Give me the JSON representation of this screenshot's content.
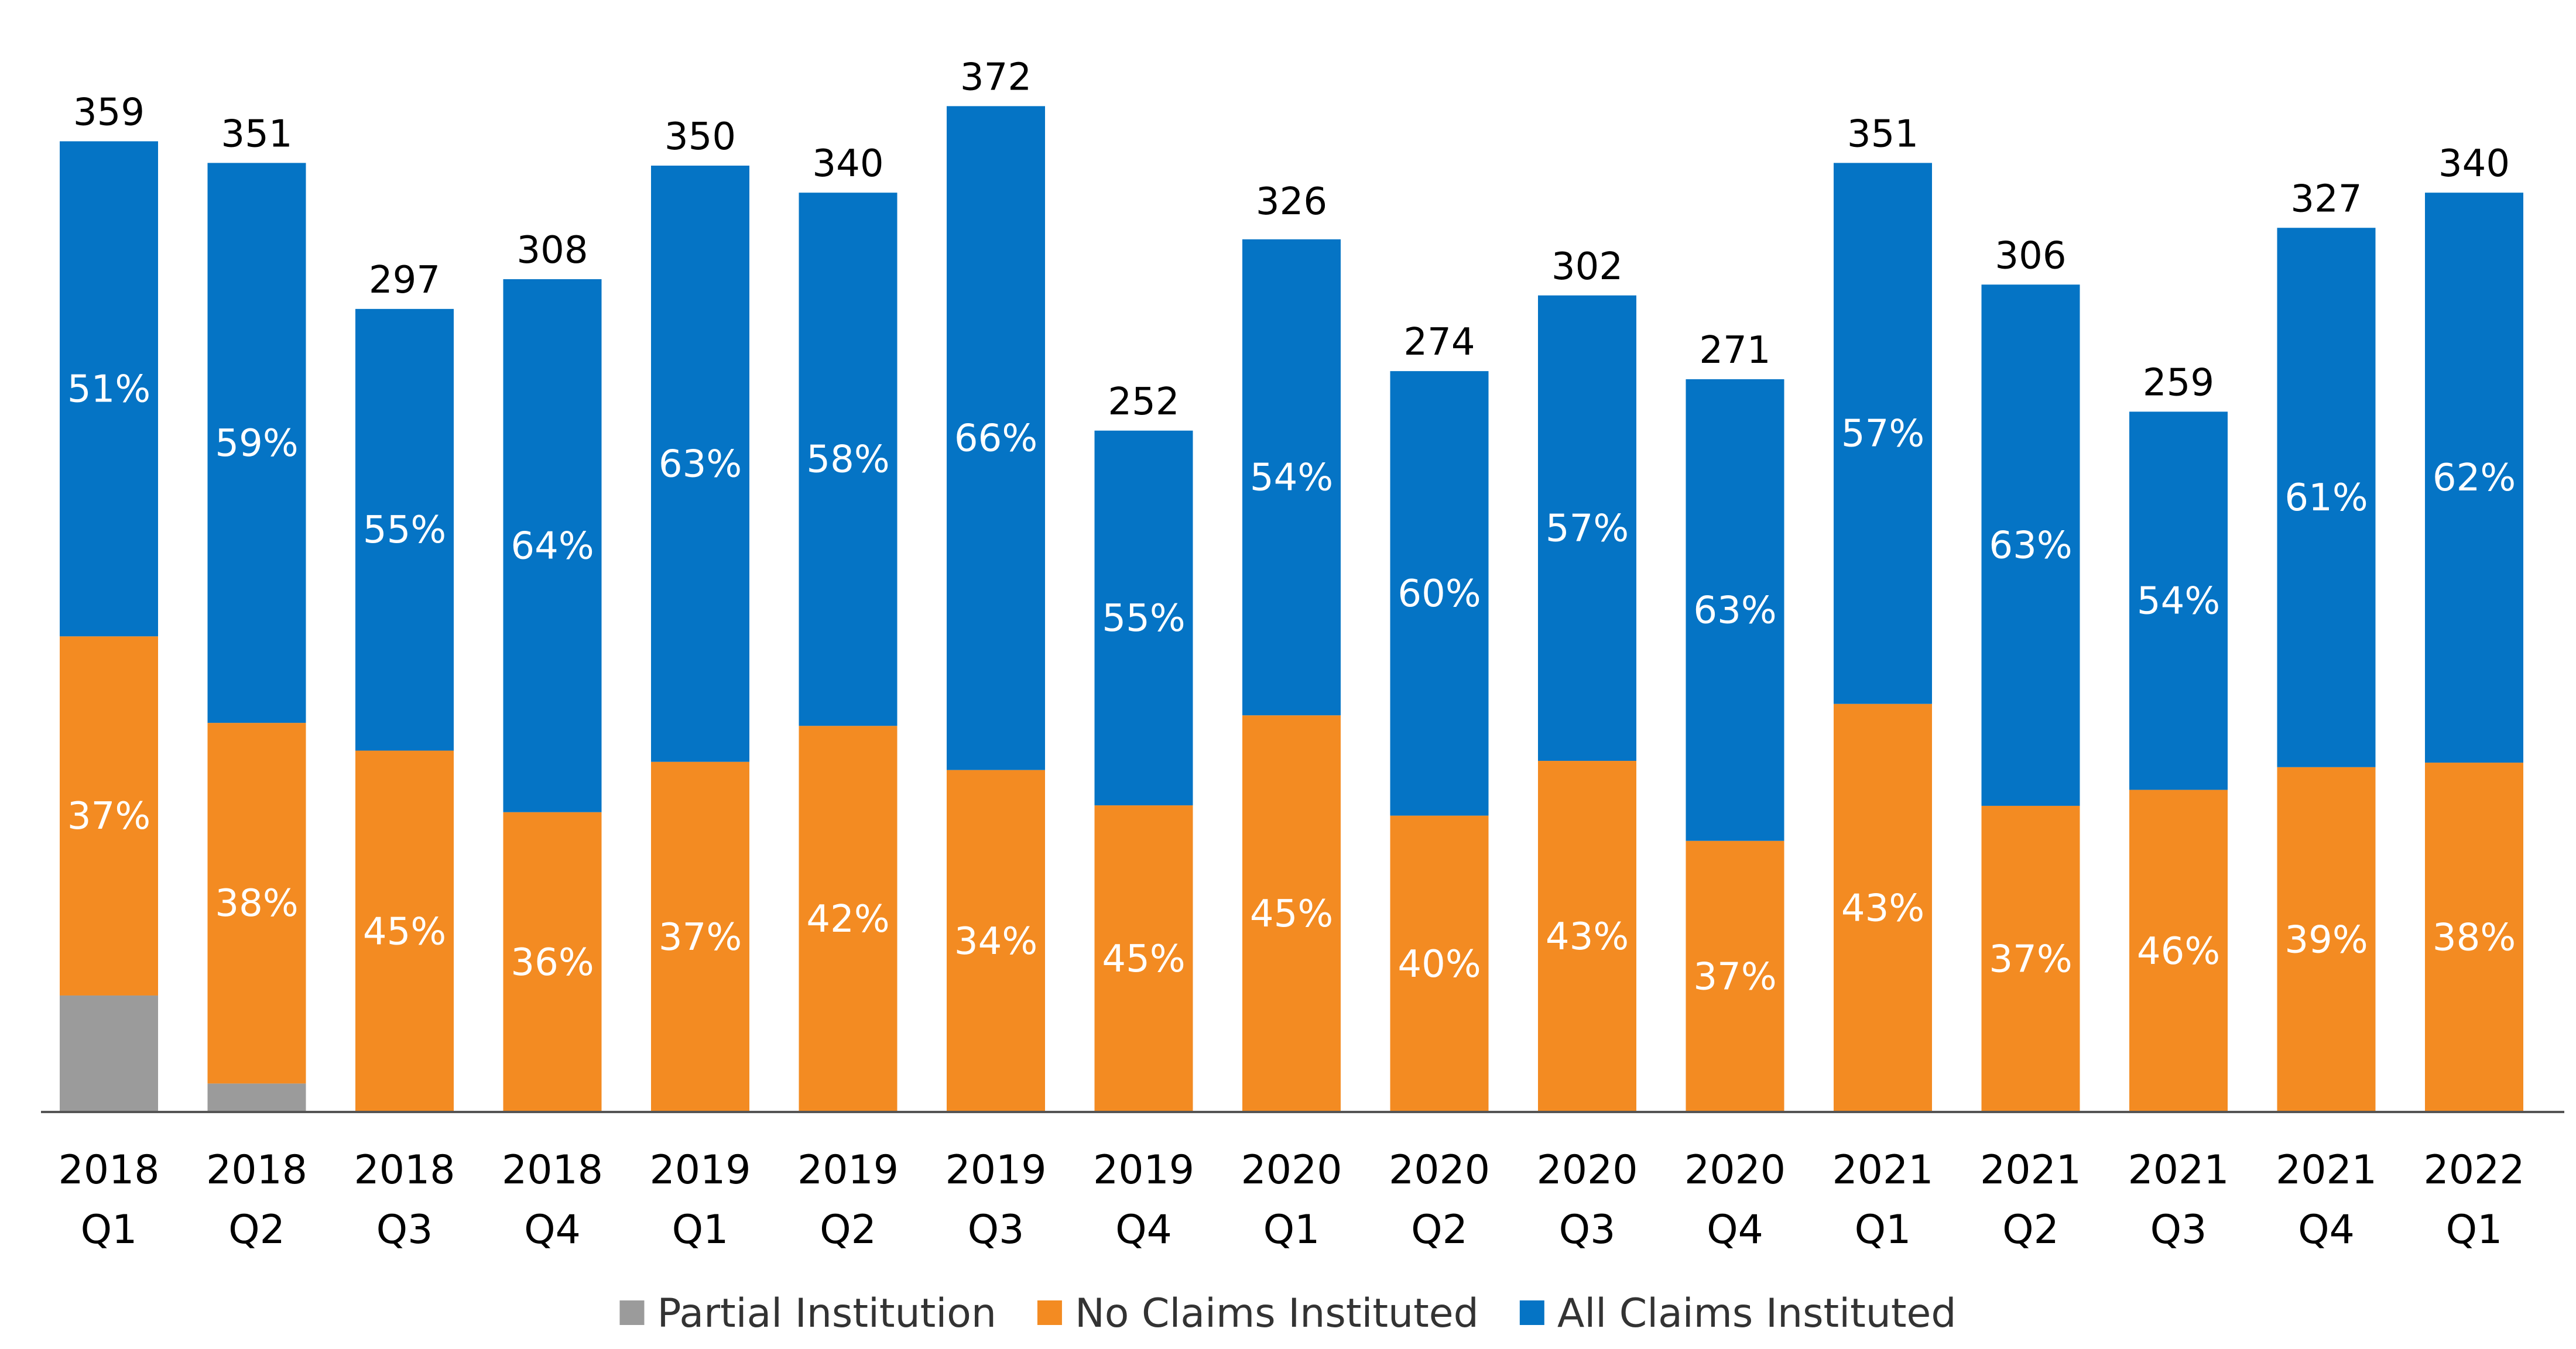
{
  "chart_data": {
    "type": "bar",
    "stacked": true,
    "title": "",
    "xlabel": "",
    "ylabel": "",
    "ylim": [
      0,
      380
    ],
    "grid": false,
    "legend": "bottom",
    "categories": [
      [
        "2018",
        "Q1"
      ],
      [
        "2018",
        "Q2"
      ],
      [
        "2018",
        "Q3"
      ],
      [
        "2018",
        "Q4"
      ],
      [
        "2019",
        "Q1"
      ],
      [
        "2019",
        "Q2"
      ],
      [
        "2019",
        "Q3"
      ],
      [
        "2019",
        "Q4"
      ],
      [
        "2020",
        "Q1"
      ],
      [
        "2020",
        "Q2"
      ],
      [
        "2020",
        "Q3"
      ],
      [
        "2020",
        "Q4"
      ],
      [
        "2021",
        "Q1"
      ],
      [
        "2021",
        "Q2"
      ],
      [
        "2021",
        "Q3"
      ],
      [
        "2021",
        "Q4"
      ],
      [
        "2022",
        "Q1"
      ]
    ],
    "totals": [
      359,
      351,
      297,
      308,
      350,
      340,
      372,
      252,
      326,
      274,
      302,
      271,
      351,
      306,
      259,
      327,
      340
    ],
    "series": [
      {
        "name": "Partial Institution",
        "color": "#9b9b9b",
        "percent": [
          12,
          3,
          0,
          0,
          0,
          0,
          0,
          0,
          0,
          0,
          0,
          0,
          0,
          0,
          0,
          0,
          0
        ],
        "labels": [
          "",
          "",
          "",
          "",
          "",
          "",
          "",
          "",
          "",
          "",
          "",
          "",
          "",
          "",
          "",
          "",
          ""
        ]
      },
      {
        "name": "No Claims Instituted",
        "color": "#f38b22",
        "percent": [
          37,
          38,
          45,
          36,
          37,
          42,
          34,
          45,
          45,
          40,
          43,
          37,
          43,
          37,
          46,
          39,
          38
        ],
        "labels": [
          "37%",
          "38%",
          "45%",
          "36%",
          "37%",
          "42%",
          "34%",
          "45%",
          "45%",
          "40%",
          "43%",
          "37%",
          "43%",
          "37%",
          "46%",
          "39%",
          "38%"
        ]
      },
      {
        "name": "All Claims Instituted",
        "color": "#0574c5",
        "percent": [
          51,
          59,
          55,
          64,
          63,
          58,
          66,
          55,
          54,
          60,
          57,
          63,
          57,
          63,
          54,
          61,
          62
        ],
        "labels": [
          "51%",
          "59%",
          "55%",
          "64%",
          "63%",
          "58%",
          "66%",
          "55%",
          "54%",
          "60%",
          "57%",
          "63%",
          "57%",
          "63%",
          "54%",
          "61%",
          "62%"
        ]
      }
    ]
  }
}
